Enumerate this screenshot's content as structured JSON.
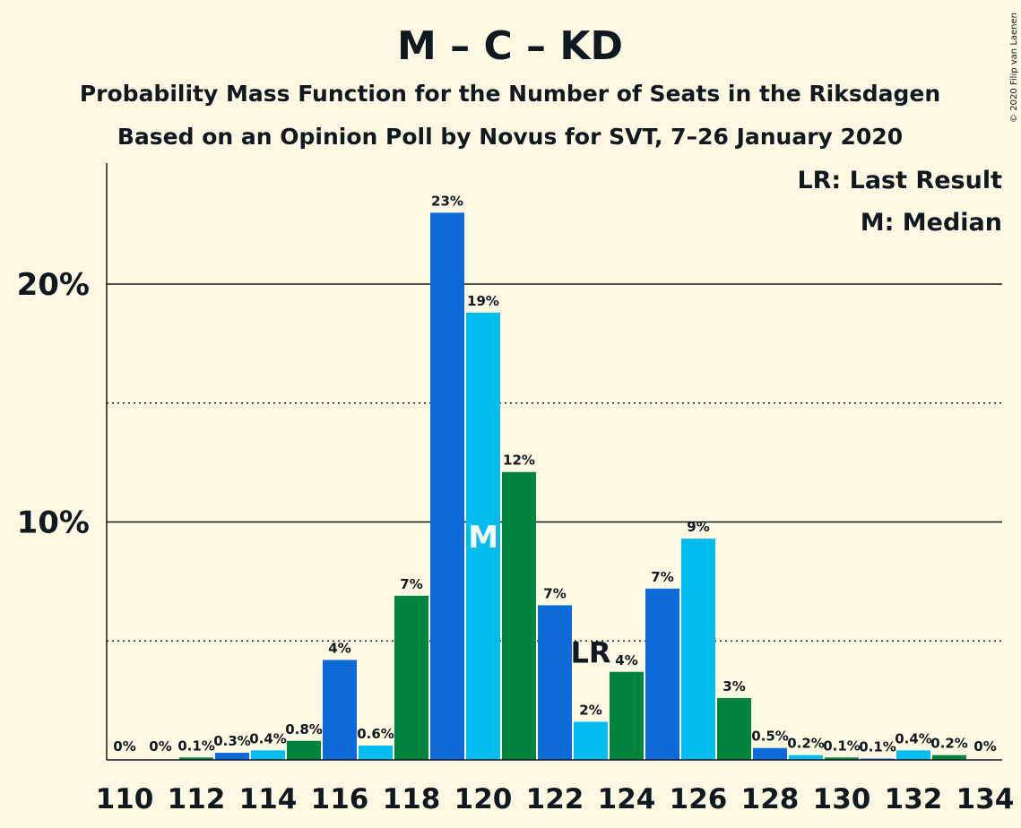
{
  "chart_data": {
    "type": "bar",
    "title": "M – C – KD",
    "subtitle_line1": "Probability Mass Function for the Number of Seats in the Riksdagen",
    "subtitle_line2": "Based on an Opinion Poll by Novus for SVT, 7–26 January 2020",
    "copyright": "© 2020 Filip van Laenen",
    "legend": {
      "last_result": "LR: Last Result",
      "median": "M: Median",
      "placement": "top-right"
    },
    "y_ticks": [
      {
        "value": 10,
        "label": "10%"
      },
      {
        "value": 20,
        "label": "20%"
      }
    ],
    "y_minor_ticks": [
      5,
      15
    ],
    "ylim": [
      0,
      25
    ],
    "x_ticks": [
      "110",
      "112",
      "114",
      "116",
      "118",
      "120",
      "122",
      "124",
      "126",
      "128",
      "130",
      "132",
      "134"
    ],
    "categories": [
      110,
      111,
      112,
      113,
      114,
      115,
      116,
      117,
      118,
      119,
      120,
      121,
      122,
      123,
      124,
      125,
      126,
      127,
      128,
      129,
      130,
      131,
      132,
      133,
      134
    ],
    "values": [
      0,
      0,
      0.1,
      0.3,
      0.4,
      0.8,
      4.2,
      0.6,
      6.9,
      23.0,
      18.8,
      12.1,
      6.5,
      1.6,
      3.7,
      7.2,
      9.3,
      2.6,
      0.5,
      0.2,
      0.1,
      0.05,
      0.4,
      0.2,
      0
    ],
    "labels": [
      "0%",
      "0%",
      "0.1%",
      "0.3%",
      "0.4%",
      "0.8%",
      "4%",
      "0.6%",
      "7%",
      "23%",
      "19%",
      "12%",
      "7%",
      "2%",
      "4%",
      "7%",
      "9%",
      "3%",
      "0.5%",
      "0.2%",
      "0.1%",
      "0.1%",
      "0.4%",
      "0.2%",
      "0%"
    ],
    "colors": {
      "blue": "#0d6bd8",
      "lightblue": "#00bbee",
      "green": "#00843d",
      "text": "#101820"
    },
    "color_cycle": [
      "blue",
      "lightblue",
      "green"
    ],
    "median_seat": 120,
    "median_label": "M",
    "last_result_seat": 123,
    "last_result_label": "LR",
    "grid": "major solid at 10% and 20%, dotted minor at 5% and 15%"
  }
}
